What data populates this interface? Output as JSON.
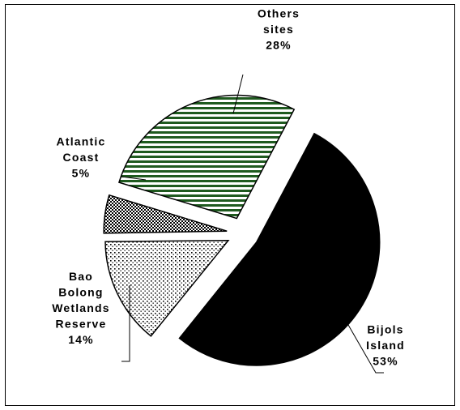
{
  "chart_data": {
    "type": "pie",
    "title": "",
    "slices": [
      {
        "label": "Bijols Island",
        "value": 53,
        "label_lines": [
          "Bijols",
          "Island",
          "53%"
        ],
        "pattern": "solid-black",
        "color": "#000000"
      },
      {
        "label": "Bao Bolong Wetlands Reserve",
        "value": 14,
        "label_lines": [
          "Bao",
          "Bolong",
          "Wetlands",
          "Reserve",
          "14%"
        ],
        "pattern": "dotted",
        "color": "#000000"
      },
      {
        "label": "Atlantic Coast",
        "value": 5,
        "label_lines": [
          "Atlantic",
          "Coast",
          "5%"
        ],
        "pattern": "checkered",
        "color": "#000000"
      },
      {
        "label": "Others sites",
        "value": 28,
        "label_lines": [
          "Others",
          "sites",
          "28%"
        ],
        "pattern": "green-horizontal-stripes",
        "color": "#1f5a1f"
      }
    ],
    "legend": "none",
    "exploded": true
  }
}
